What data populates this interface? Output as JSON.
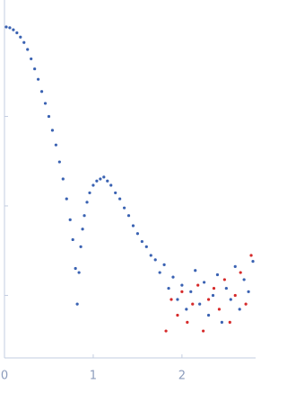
{
  "chart_data": {
    "type": "scatter",
    "log_y": true,
    "xlim": [
      0,
      2.83
    ],
    "xticks": [
      0,
      1,
      2
    ],
    "ylim": [
      0.0002,
      2
    ],
    "yticks": [
      0.001,
      0.01,
      0.1
    ],
    "series": [
      {
        "color": "#3a62b2",
        "x": [
          0.02,
          0.06,
          0.1,
          0.14,
          0.18,
          0.22,
          0.26,
          0.3,
          0.34,
          0.38,
          0.42,
          0.46,
          0.5,
          0.54,
          0.58,
          0.62,
          0.66,
          0.7,
          0.74,
          0.77,
          0.8,
          0.82,
          0.84,
          0.86,
          0.88,
          0.9,
          0.93,
          0.96,
          1.0,
          1.04,
          1.08,
          1.12,
          1.16,
          1.2,
          1.25,
          1.3,
          1.35,
          1.4,
          1.45,
          1.5,
          1.55,
          1.6,
          1.65,
          1.7,
          1.75,
          1.8,
          1.85,
          1.9,
          1.95,
          2.0,
          2.05,
          2.1,
          2.15,
          2.2,
          2.25,
          2.3,
          2.35,
          2.4,
          2.45,
          2.5,
          2.55,
          2.6,
          2.65,
          2.7,
          2.75,
          2.8
        ],
        "values": [
          1.0,
          0.98,
          0.93,
          0.86,
          0.77,
          0.67,
          0.56,
          0.44,
          0.34,
          0.26,
          0.19,
          0.14,
          0.1,
          0.07,
          0.048,
          0.031,
          0.02,
          0.012,
          0.007,
          0.0042,
          0.002,
          0.0008,
          0.0018,
          0.0035,
          0.0055,
          0.0078,
          0.011,
          0.014,
          0.017,
          0.019,
          0.02,
          0.021,
          0.019,
          0.017,
          0.014,
          0.012,
          0.0095,
          0.0078,
          0.006,
          0.0049,
          0.004,
          0.0035,
          0.0028,
          0.0025,
          0.0018,
          0.0022,
          0.0012,
          0.0016,
          0.0009,
          0.0013,
          0.0007,
          0.0011,
          0.0019,
          0.0008,
          0.0014,
          0.0006,
          0.001,
          0.0017,
          0.0005,
          0.0012,
          0.0009,
          0.0021,
          0.0007,
          0.0015,
          0.0011,
          0.0024
        ]
      },
      {
        "color": "#d62a2a",
        "x": [
          1.82,
          1.88,
          1.95,
          2.0,
          2.06,
          2.12,
          2.18,
          2.24,
          2.3,
          2.36,
          2.42,
          2.48,
          2.54,
          2.6,
          2.66,
          2.72,
          2.78
        ],
        "values": [
          0.0004,
          0.0009,
          0.0006,
          0.0011,
          0.0005,
          0.0008,
          0.0013,
          0.0004,
          0.0009,
          0.0012,
          0.0007,
          0.0015,
          0.0005,
          0.001,
          0.0018,
          0.0008,
          0.0028
        ]
      }
    ]
  }
}
